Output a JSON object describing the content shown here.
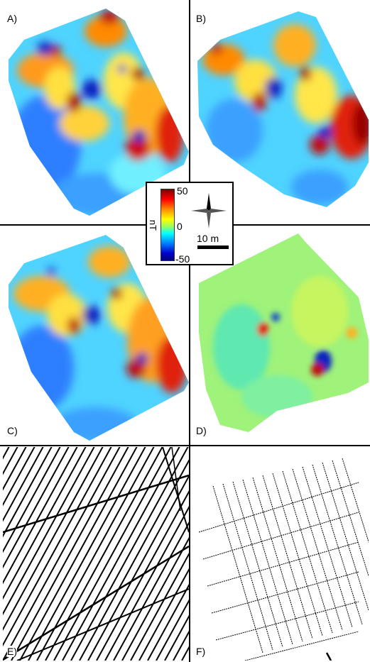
{
  "panels": [
    {
      "id": "A",
      "label": "A)"
    },
    {
      "id": "B",
      "label": "B)"
    },
    {
      "id": "C",
      "label": "C)"
    },
    {
      "id": "D",
      "label": "D)"
    },
    {
      "id": "E",
      "label": "E)"
    },
    {
      "id": "F",
      "label": "F)"
    }
  ],
  "legend": {
    "max": "50",
    "mid": "0",
    "min": "-50",
    "unit": "nT",
    "scale_label": "10 m"
  },
  "colors": {
    "high": "#7f0000",
    "positive": "#ff8c00",
    "neutral": "#00ffff",
    "negative": "#0000cc"
  }
}
